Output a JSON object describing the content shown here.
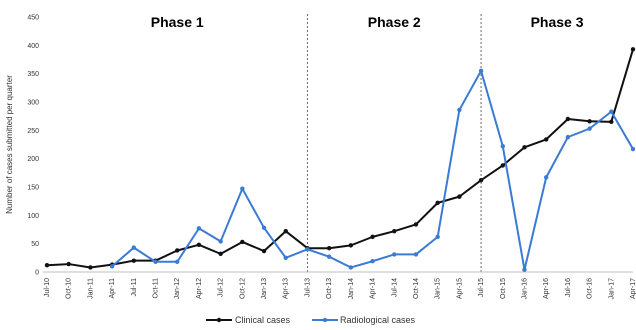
{
  "chart_data": {
    "type": "line",
    "ylabel": "Number of cases submitted per quarter",
    "ylim": [
      0,
      450
    ],
    "yticks": [
      0,
      50,
      100,
      150,
      200,
      250,
      300,
      350,
      400,
      450
    ],
    "x": [
      "Jul-10",
      "Oct-10",
      "Jan-11",
      "Apr-11",
      "Jul-11",
      "Oct-11",
      "Jan-12",
      "Apr-12",
      "Jul-12",
      "Oct-12",
      "Jan-13",
      "Apr-13",
      "Jul-13",
      "Oct-13",
      "Jan-14",
      "Apr-14",
      "Jul-14",
      "Oct-14",
      "Jan-15",
      "Apr-15",
      "Jul-15",
      "Oct-15",
      "Jan-16",
      "Apr-16",
      "Jul-16",
      "Oct-16",
      "Jan-17",
      "Apr-17"
    ],
    "series": [
      {
        "name": "Clinical cases",
        "color": "#111111",
        "values": [
          12,
          14,
          8,
          13,
          20,
          20,
          38,
          48,
          32,
          53,
          37,
          72,
          42,
          42,
          47,
          62,
          72,
          84,
          122,
          133,
          162,
          188,
          220,
          234,
          270,
          266,
          265,
          393
        ]
      },
      {
        "name": "Radiological cases",
        "color": "#3a7bd5",
        "values": [
          null,
          null,
          null,
          10,
          43,
          18,
          18,
          77,
          54,
          147,
          78,
          25,
          40,
          27,
          8,
          19,
          31,
          31,
          62,
          286,
          355,
          222,
          4,
          167,
          238,
          253,
          283,
          217
        ]
      }
    ],
    "phases": [
      {
        "label": "Phase 1",
        "start": "Jul-10",
        "end": "Jul-13"
      },
      {
        "label": "Phase 2",
        "start": "Jul-13",
        "end": "Jul-15"
      },
      {
        "label": "Phase 3",
        "start": "Jul-15",
        "end": "Apr-17"
      }
    ],
    "legend": [
      "Clinical cases",
      "Radiological cases"
    ],
    "legend_position": "bottom"
  }
}
